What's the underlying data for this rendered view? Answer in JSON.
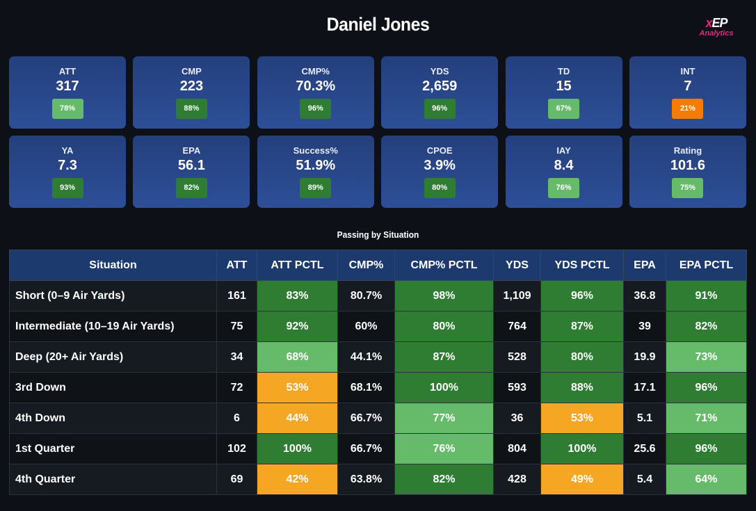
{
  "header": {
    "title": "Daniel Jones",
    "logo": {
      "mark_x": "x",
      "mark_rest": "EP",
      "sub": "Analytics"
    }
  },
  "colors": {
    "dark_green": "#2e7d32",
    "light_green": "#66bb6a",
    "orange": "#f5a623",
    "deep_orange": "#f57c00"
  },
  "cards": [
    {
      "label": "ATT",
      "value": "317",
      "pct": "78%",
      "color": "#66bb6a"
    },
    {
      "label": "CMP",
      "value": "223",
      "pct": "88%",
      "color": "#2e7d32"
    },
    {
      "label": "CMP%",
      "value": "70.3%",
      "pct": "96%",
      "color": "#2e7d32"
    },
    {
      "label": "YDS",
      "value": "2,659",
      "pct": "96%",
      "color": "#2e7d32"
    },
    {
      "label": "TD",
      "value": "15",
      "pct": "67%",
      "color": "#66bb6a"
    },
    {
      "label": "INT",
      "value": "7",
      "pct": "21%",
      "color": "#f57c00"
    },
    {
      "label": "YA",
      "value": "7.3",
      "pct": "93%",
      "color": "#2e7d32"
    },
    {
      "label": "EPA",
      "value": "56.1",
      "pct": "82%",
      "color": "#2e7d32"
    },
    {
      "label": "Success%",
      "value": "51.9%",
      "pct": "89%",
      "color": "#2e7d32"
    },
    {
      "label": "CPOE",
      "value": "3.9%",
      "pct": "80%",
      "color": "#2e7d32"
    },
    {
      "label": "IAY",
      "value": "8.4",
      "pct": "76%",
      "color": "#66bb6a"
    },
    {
      "label": "Rating",
      "value": "101.6",
      "pct": "75%",
      "color": "#66bb6a"
    }
  ],
  "situation": {
    "title": "Passing by Situation",
    "columns": [
      "Situation",
      "ATT",
      "ATT PCTL",
      "CMP%",
      "CMP% PCTL",
      "YDS",
      "YDS PCTL",
      "EPA",
      "EPA PCTL"
    ],
    "rows": [
      {
        "cells": [
          "Short (0–9 Air Yards)",
          "161",
          "83%",
          "80.7%",
          "98%",
          "1,109",
          "96%",
          "36.8",
          "91%"
        ],
        "colors": [
          "",
          "",
          "#2e7d32",
          "",
          "#2e7d32",
          "",
          "#2e7d32",
          "",
          "#2e7d32"
        ]
      },
      {
        "cells": [
          "Intermediate (10–19 Air Yards)",
          "75",
          "92%",
          "60%",
          "80%",
          "764",
          "87%",
          "39",
          "82%"
        ],
        "colors": [
          "",
          "",
          "#2e7d32",
          "",
          "#2e7d32",
          "",
          "#2e7d32",
          "",
          "#2e7d32"
        ]
      },
      {
        "cells": [
          "Deep (20+ Air Yards)",
          "34",
          "68%",
          "44.1%",
          "87%",
          "528",
          "80%",
          "19.9",
          "73%"
        ],
        "colors": [
          "",
          "",
          "#66bb6a",
          "",
          "#2e7d32",
          "",
          "#2e7d32",
          "",
          "#66bb6a"
        ]
      },
      {
        "cells": [
          "3rd Down",
          "72",
          "53%",
          "68.1%",
          "100%",
          "593",
          "88%",
          "17.1",
          "96%"
        ],
        "colors": [
          "",
          "",
          "#f5a623",
          "",
          "#2e7d32",
          "",
          "#2e7d32",
          "",
          "#2e7d32"
        ]
      },
      {
        "cells": [
          "4th Down",
          "6",
          "44%",
          "66.7%",
          "77%",
          "36",
          "53%",
          "5.1",
          "71%"
        ],
        "colors": [
          "",
          "",
          "#f5a623",
          "",
          "#66bb6a",
          "",
          "#f5a623",
          "",
          "#66bb6a"
        ]
      },
      {
        "cells": [
          "1st Quarter",
          "102",
          "100%",
          "66.7%",
          "76%",
          "804",
          "100%",
          "25.6",
          "96%"
        ],
        "colors": [
          "",
          "",
          "#2e7d32",
          "",
          "#66bb6a",
          "",
          "#2e7d32",
          "",
          "#2e7d32"
        ]
      },
      {
        "cells": [
          "4th Quarter",
          "69",
          "42%",
          "63.8%",
          "82%",
          "428",
          "49%",
          "5.4",
          "64%"
        ],
        "colors": [
          "",
          "",
          "#f5a623",
          "",
          "#2e7d32",
          "",
          "#f5a623",
          "",
          "#66bb6a"
        ]
      }
    ]
  }
}
